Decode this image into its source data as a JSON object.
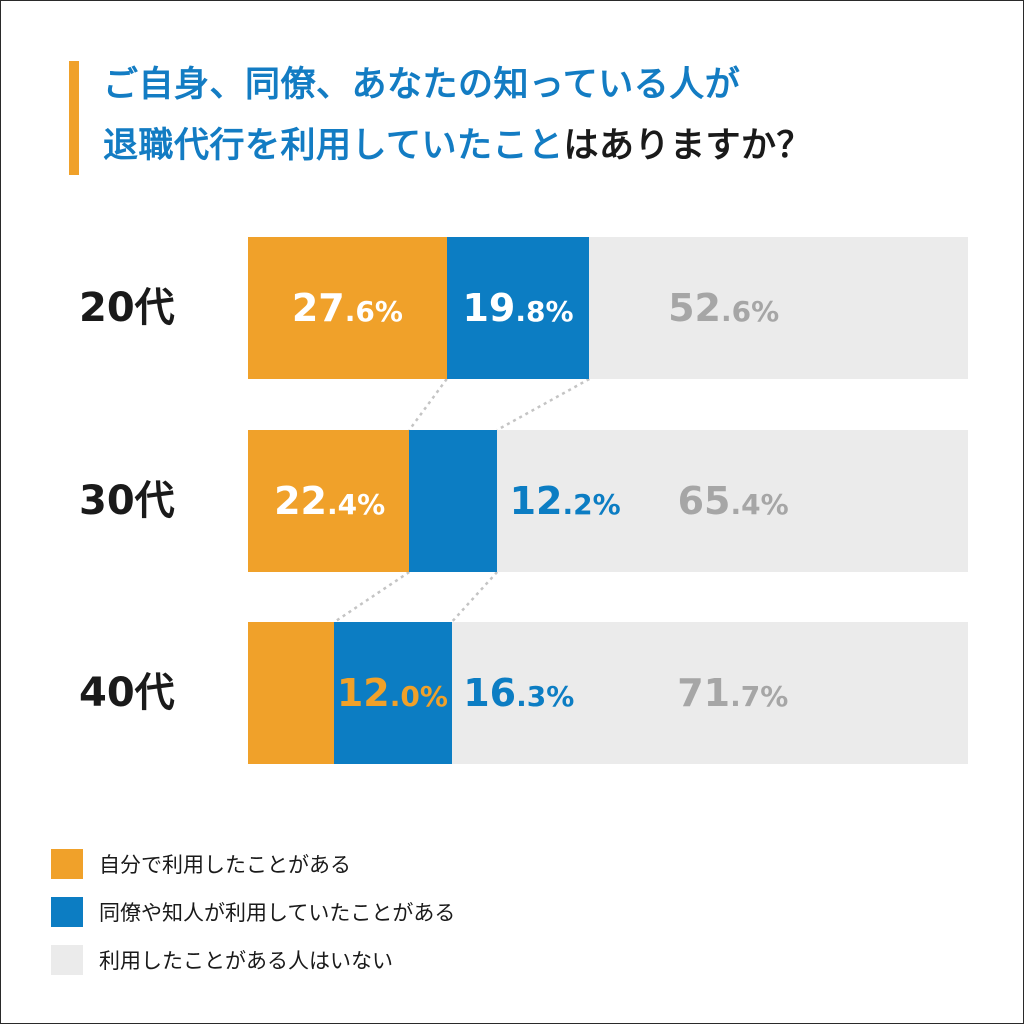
{
  "title": {
    "line1": "ご自身、同僚、あなたの知っている人が",
    "line2_highlight": "退職代行を利用していたこと",
    "line2_rest": "はありますか？"
  },
  "colors": {
    "self": "#f0a12a",
    "others": "#0c7dc3",
    "none": "#ebebeb",
    "none_text": "#a6a6a6",
    "connector": "#c4c4c4"
  },
  "chart_data": {
    "type": "bar",
    "orientation": "horizontal",
    "stacked": true,
    "normalized_percent": true,
    "categories": [
      "20代",
      "30代",
      "40代"
    ],
    "series": [
      {
        "name": "自分で利用したことがある",
        "values": [
          27.6,
          22.4,
          12.0
        ]
      },
      {
        "name": "同僚や知人が利用していたことがある",
        "values": [
          19.8,
          12.2,
          16.3
        ]
      },
      {
        "name": "利用したことがある人はいない",
        "values": [
          52.6,
          65.4,
          71.7
        ]
      }
    ],
    "labels": [
      [
        "27.6%",
        "19.8%",
        "52.6%"
      ],
      [
        "22.4%",
        "12.2%",
        "65.4%"
      ],
      [
        "12.0%",
        "16.3%",
        "71.7%"
      ]
    ],
    "xlim": [
      0,
      100
    ],
    "legend_position": "bottom-left"
  },
  "legend": [
    "自分で利用したことがある",
    "同僚や知人が利用していたことがある",
    "利用したことがある人はいない"
  ]
}
